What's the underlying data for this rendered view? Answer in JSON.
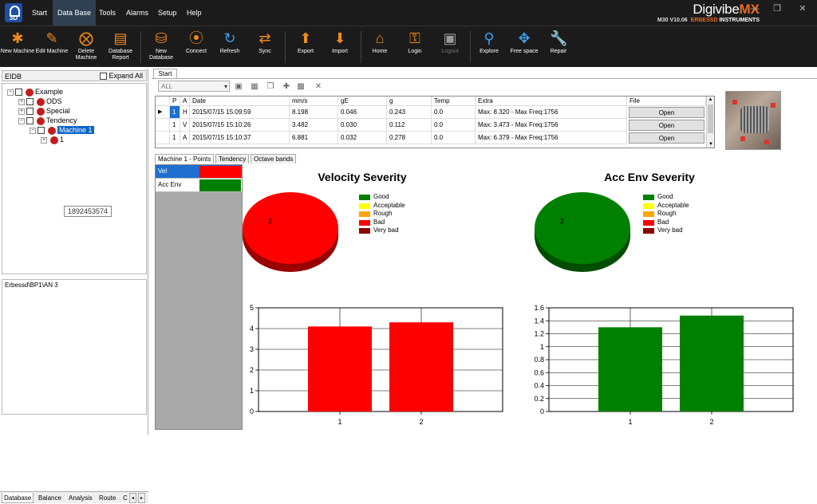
{
  "menu": {
    "items": [
      "Start",
      "Data Base",
      "Tools",
      "Alarms",
      "Setup",
      "Help"
    ],
    "active": "Data Base",
    "logo_text": "3D"
  },
  "brand": {
    "title": "Digivibe",
    "title_mx": "MX",
    "version": "M30 V10.06",
    "company_prefix": "ERBESSD",
    "company_suffix": " INSTRUMENTS"
  },
  "toolbar": {
    "new_machine": "New Machine",
    "edit_machine": "Edit Machine",
    "delete_machine": "Delete Machine",
    "database_report": "Database Report",
    "new_database": "New Database",
    "connect": "Connect",
    "refresh": "Refresh",
    "sync": "Sync",
    "export": "Export",
    "import": "Import",
    "home": "Home",
    "login": "Login",
    "logout": "Logout",
    "explore": "Explore",
    "free_space": "Free space",
    "repair": "Repair"
  },
  "left": {
    "header": "EIDB",
    "expand_all": "Expand All",
    "tree": {
      "root": "Example",
      "ods": "ODS",
      "special": "Special",
      "tendency": "Tendency",
      "machine": "Machine 1",
      "child": "1"
    },
    "tooltip": "1892453574",
    "path": "Erbessd\\BP1\\AN 3",
    "bottom_tabs": [
      "Database",
      "Balance",
      "Analysis",
      "Route",
      "C"
    ]
  },
  "main": {
    "tab": "Start",
    "filter": "ALL",
    "grid": {
      "columns": [
        "P",
        "A",
        "Date",
        "mm/s",
        "gE",
        "g",
        "Temp",
        "Extra",
        "File"
      ],
      "rows": [
        {
          "p": "1",
          "a": "H",
          "date": "2015/07/15 15:09:59",
          "mms": "8.198",
          "ge": "0.046",
          "g": "0.243",
          "temp": "0.0",
          "extra": "Max: 8.320 - Max Freq:1756",
          "file": "Open"
        },
        {
          "p": "1",
          "a": "V",
          "date": "2015/07/15 15:10:26",
          "mms": "3.482",
          "ge": "0.030",
          "g": "0.112",
          "temp": "0.0",
          "extra": "Max: 3.473 - Max Freq:1756",
          "file": "Open"
        },
        {
          "p": "1",
          "a": "A",
          "date": "2015/07/15 15:10:37",
          "mms": "6.881",
          "ge": "0.032",
          "g": "0.278",
          "temp": "0.0",
          "extra": "Max: 6.379 - Max Freq:1756",
          "file": "Open"
        }
      ]
    },
    "subtabs": [
      "Machine 1 - Points",
      "Tendency",
      "Octave bands"
    ],
    "points": [
      {
        "label": "Vel",
        "color": "#ff0000"
      },
      {
        "label": "Acc Env",
        "color": "#008000"
      }
    ]
  },
  "severity_legend": [
    {
      "label": "Good",
      "color": "#008000"
    },
    {
      "label": "Acceptable",
      "color": "#ffff00"
    },
    {
      "label": "Rough",
      "color": "#ffa500"
    },
    {
      "label": "Bad",
      "color": "#ff0000"
    },
    {
      "label": "Very bad",
      "color": "#8b0000"
    }
  ],
  "chart_data": [
    {
      "type": "pie",
      "title": "Velocity Severity",
      "slices": [
        {
          "label": "Bad",
          "value": 2,
          "color": "#ff0000"
        }
      ],
      "slice_label": "2"
    },
    {
      "type": "pie",
      "title": "Acc Env Severity",
      "slices": [
        {
          "label": "Good",
          "value": 2,
          "color": "#008000"
        }
      ],
      "slice_label": "2"
    },
    {
      "type": "bar",
      "categories": [
        "1",
        "2"
      ],
      "values": [
        4.1,
        4.3
      ],
      "ylim": [
        0,
        5
      ],
      "yticks": [
        "0",
        "1",
        "2",
        "3",
        "4",
        "5"
      ],
      "color": "#ff0000",
      "grid": true
    },
    {
      "type": "bar",
      "categories": [
        "1",
        "2"
      ],
      "values": [
        1.3,
        1.48
      ],
      "ylim": [
        0,
        1.6
      ],
      "yticks": [
        "0",
        "0.2",
        "0.4",
        "0.6",
        "0.8",
        "1",
        "1.2",
        "1.4",
        "1.6"
      ],
      "color": "#008000",
      "grid": true
    }
  ]
}
